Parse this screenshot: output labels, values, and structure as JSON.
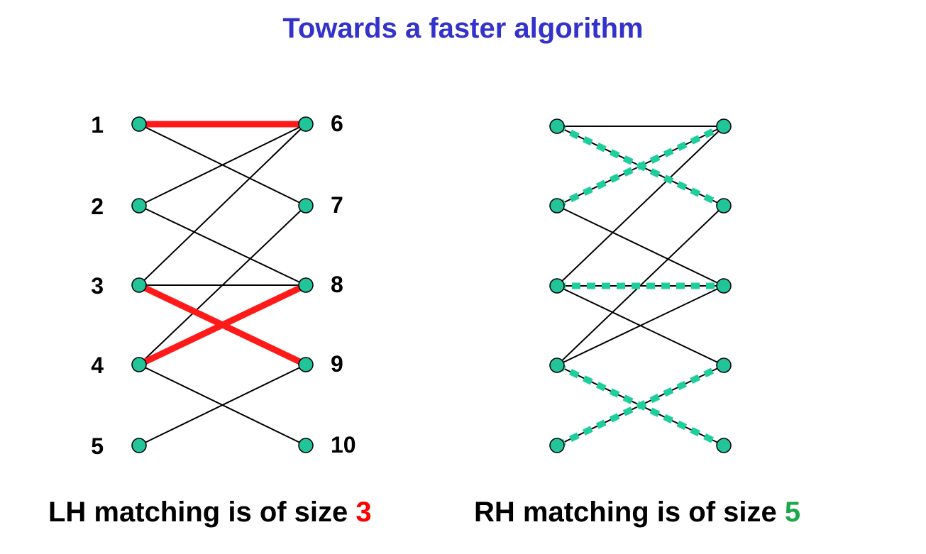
{
  "title": "Towards a faster algorithm",
  "colors": {
    "title": "#3333cc",
    "node_fill": "#22c49a",
    "lh_matching": "#ff1a1a",
    "rh_matching": "#1ecf9d",
    "edge": "#000000",
    "lh_size": "#ff0000",
    "rh_size": "#1aa84a"
  },
  "left_graph": {
    "left_labels": [
      "1",
      "2",
      "3",
      "4",
      "5"
    ],
    "right_labels": [
      "6",
      "7",
      "8",
      "9",
      "10"
    ],
    "edges": [
      [
        1,
        6
      ],
      [
        1,
        7
      ],
      [
        2,
        6
      ],
      [
        2,
        8
      ],
      [
        3,
        6
      ],
      [
        3,
        8
      ],
      [
        3,
        9
      ],
      [
        4,
        7
      ],
      [
        4,
        8
      ],
      [
        4,
        10
      ],
      [
        5,
        9
      ]
    ],
    "matching": [
      [
        1,
        6
      ],
      [
        3,
        9
      ],
      [
        4,
        8
      ]
    ]
  },
  "right_graph": {
    "edges": [
      [
        1,
        6
      ],
      [
        1,
        7
      ],
      [
        2,
        6
      ],
      [
        2,
        8
      ],
      [
        3,
        6
      ],
      [
        3,
        8
      ],
      [
        3,
        9
      ],
      [
        4,
        7
      ],
      [
        4,
        8
      ],
      [
        4,
        10
      ],
      [
        5,
        9
      ]
    ],
    "matching": [
      [
        1,
        7
      ],
      [
        2,
        6
      ],
      [
        3,
        8
      ],
      [
        4,
        10
      ],
      [
        5,
        9
      ]
    ]
  },
  "captions": {
    "left_prefix": "LH matching is of size ",
    "left_size": "3",
    "right_prefix": "RH matching is of size ",
    "right_size": "5"
  }
}
